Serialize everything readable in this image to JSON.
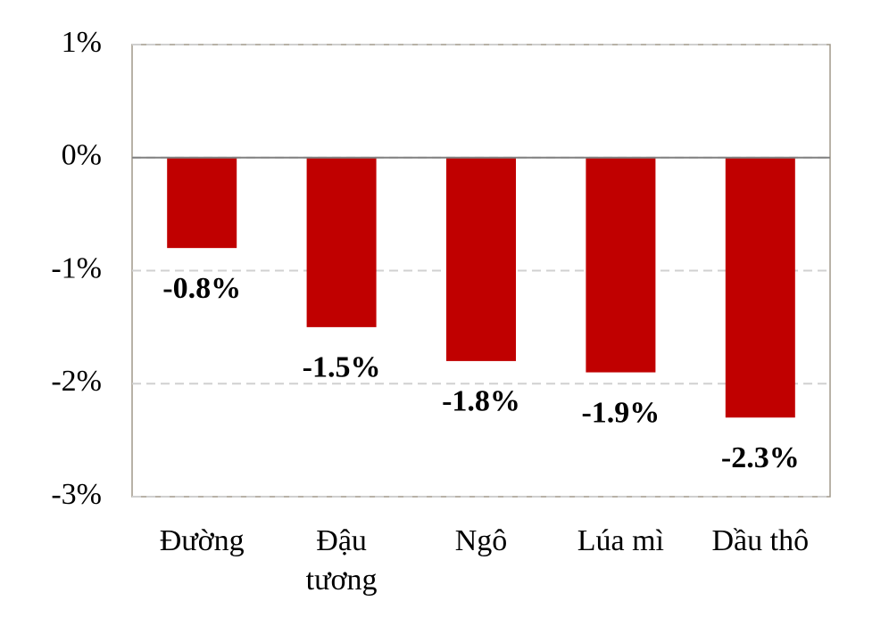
{
  "chart_data": {
    "type": "bar",
    "categories": [
      "Đường",
      "Đậu tương",
      "Ngô",
      "Lúa mì",
      "Dầu thô"
    ],
    "values": [
      -0.8,
      -1.5,
      -1.8,
      -1.9,
      -2.3
    ],
    "value_labels": [
      "-0.8%",
      "-1.5%",
      "-1.8%",
      "-1.9%",
      "-2.3%"
    ],
    "color": "#c00000",
    "ylim": [
      -3,
      1
    ],
    "yticks": [
      {
        "value": 1,
        "label": "1%"
      },
      {
        "value": 0,
        "label": "0%"
      },
      {
        "value": -1,
        "label": "-1%"
      },
      {
        "value": -2,
        "label": "-2%"
      },
      {
        "value": -3,
        "label": "-3%"
      }
    ],
    "grid": true
  }
}
